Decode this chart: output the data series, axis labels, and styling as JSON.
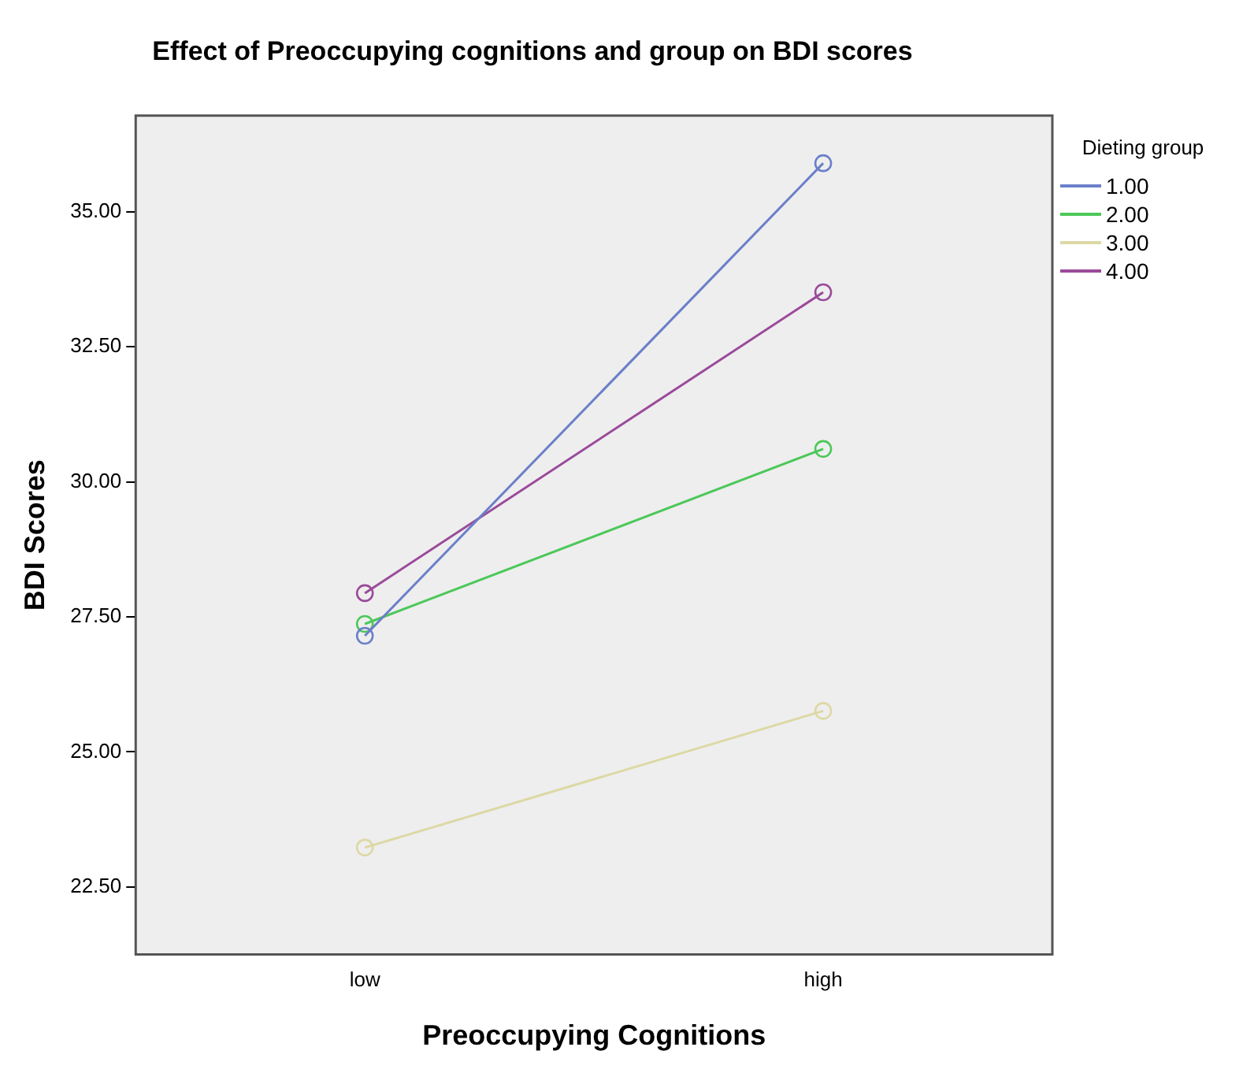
{
  "chart_data": {
    "type": "line",
    "title": "Effect of Preoccupying cognitions and group on BDI scores",
    "xlabel": "Preoccupying Cognitions",
    "ylabel": "BDI Scores",
    "legend_title": "Dieting group",
    "categories": [
      "low",
      "high"
    ],
    "series": [
      {
        "name": "1.00",
        "color": "#6b7fc9",
        "values": [
          27.15,
          35.9
        ]
      },
      {
        "name": "2.00",
        "color": "#4cc859",
        "values": [
          27.37,
          30.61
        ]
      },
      {
        "name": "3.00",
        "color": "#ddd8a4",
        "values": [
          23.23,
          25.76
        ]
      },
      {
        "name": "4.00",
        "color": "#9a4a9a",
        "values": [
          27.94,
          33.51
        ]
      }
    ],
    "ylim": [
      21.25,
      36.78
    ],
    "yticks": [
      {
        "value": 22.5,
        "label": "22.50"
      },
      {
        "value": 25,
        "label": "25.00"
      },
      {
        "value": 27.5,
        "label": "27.50"
      },
      {
        "value": 30,
        "label": "30.00"
      },
      {
        "value": 32.5,
        "label": "32.50"
      },
      {
        "value": 35,
        "label": "35.00"
      }
    ],
    "grid": false,
    "legend": "top right",
    "marker": "circle",
    "line_style": "solid"
  }
}
